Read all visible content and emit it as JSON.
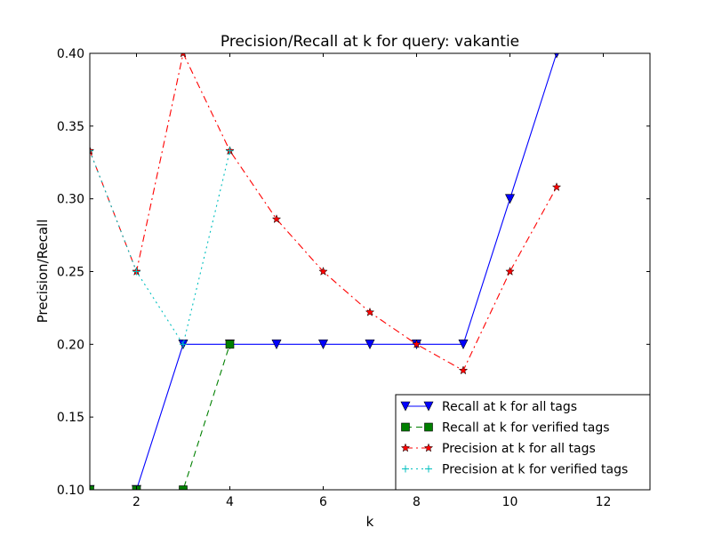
{
  "chart_data": {
    "type": "line",
    "title": "Precision/Recall at k for query: vakantie",
    "xlabel": "k",
    "ylabel": "Precision/Recall",
    "xlim": [
      1,
      13
    ],
    "ylim": [
      0.1,
      0.4
    ],
    "xticks": [
      2,
      4,
      6,
      8,
      10,
      12
    ],
    "yticks": [
      0.1,
      0.15,
      0.2,
      0.25,
      0.3,
      0.35,
      0.4
    ],
    "ytick_labels": [
      "0.10",
      "0.15",
      "0.20",
      "0.25",
      "0.30",
      "0.35",
      "0.40"
    ],
    "grid": false,
    "legend_position": "lower-right",
    "series": [
      {
        "name": "Recall at k for all tags",
        "color": "#0000ff",
        "linestyle": "solid",
        "marker": "triangle-down",
        "x": [
          1,
          2,
          3,
          4,
          5,
          6,
          7,
          8,
          9,
          10,
          11
        ],
        "y": [
          0.1,
          0.1,
          0.2,
          0.2,
          0.2,
          0.2,
          0.2,
          0.2,
          0.2,
          0.3,
          0.4
        ]
      },
      {
        "name": "Recall at k for verified tags",
        "color": "#008000",
        "linestyle": "dashed",
        "marker": "square",
        "x": [
          1,
          2,
          3,
          4
        ],
        "y": [
          0.1,
          0.1,
          0.1,
          0.2
        ]
      },
      {
        "name": "Precision at k for all tags",
        "color": "#ff0000",
        "linestyle": "dashdot",
        "marker": "star",
        "x": [
          1,
          2,
          3,
          4,
          5,
          6,
          7,
          8,
          9,
          10,
          11
        ],
        "y": [
          0.333,
          0.25,
          0.4,
          0.333,
          0.286,
          0.25,
          0.222,
          0.2,
          0.182,
          0.25,
          0.308
        ]
      },
      {
        "name": "Precision at k for verified tags",
        "color": "#00bfbf",
        "linestyle": "dotted",
        "marker": "plus",
        "x": [
          1,
          2,
          3,
          4
        ],
        "y": [
          0.333,
          0.25,
          0.2,
          0.333
        ]
      }
    ]
  }
}
